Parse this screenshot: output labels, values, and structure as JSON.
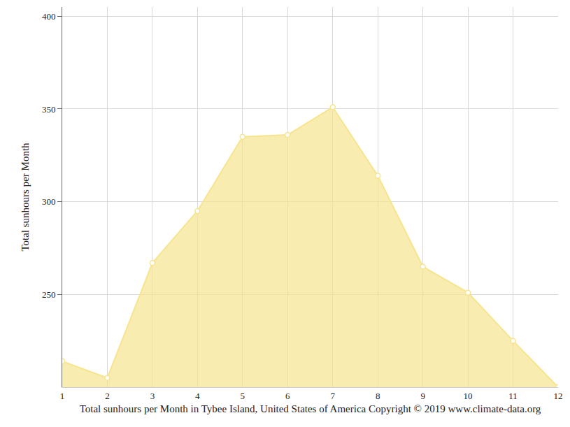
{
  "chart_data": {
    "type": "area",
    "xlabel": "Total sunhours per Month in Tybee Island, United States of America Copyright © 2019 www.climate-data.org",
    "ylabel": "Total sunhours per Month",
    "x": [
      1,
      2,
      3,
      4,
      5,
      6,
      7,
      8,
      9,
      10,
      11,
      12
    ],
    "values": [
      214,
      205,
      267,
      295,
      335,
      336,
      351,
      314,
      265,
      251,
      225,
      200
    ],
    "color": "#f7e48e",
    "marker": "circle",
    "xlim": [
      1,
      12
    ],
    "xticks": [
      1,
      2,
      3,
      4,
      5,
      6,
      7,
      8,
      9,
      10,
      11,
      12
    ],
    "ylim": [
      200,
      405
    ],
    "yticks": [
      250,
      300,
      350,
      400
    ],
    "grid": true
  }
}
